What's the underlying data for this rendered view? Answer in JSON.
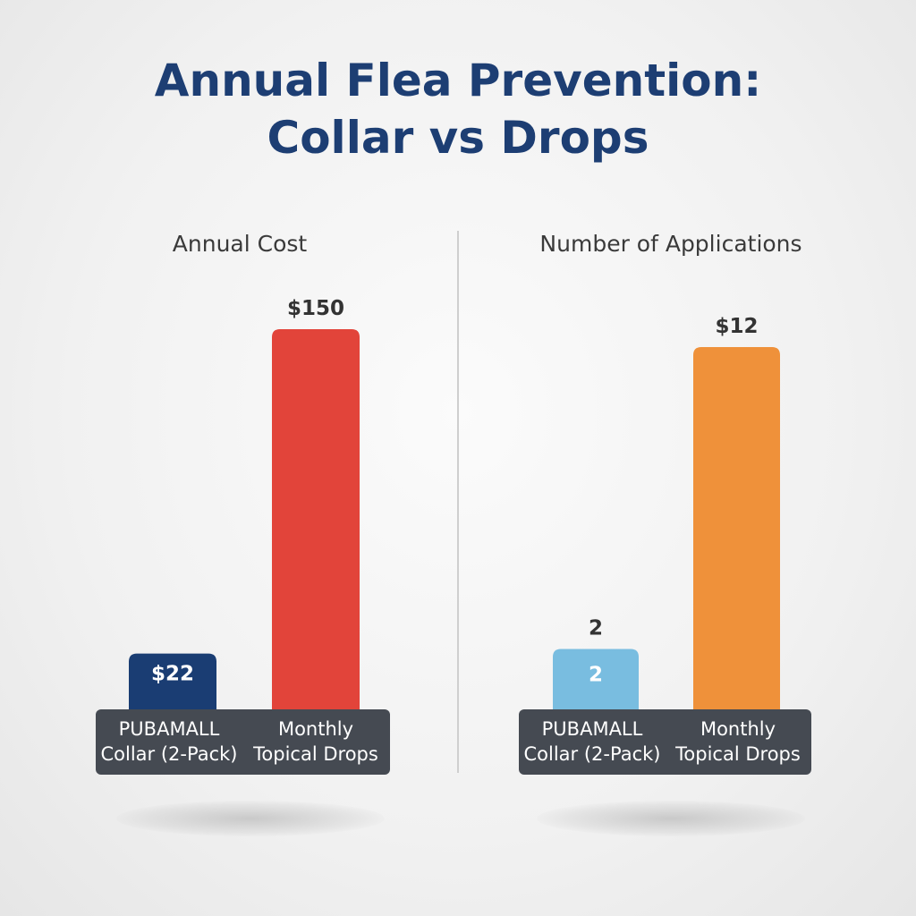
{
  "title": {
    "line1": "Annual Flea Prevention:",
    "line2": "Collar vs Drops"
  },
  "chart_data": [
    {
      "type": "bar",
      "title": "Annual Cost",
      "categories": [
        "PUBAMALL Collar (2-Pack)",
        "Monthly Topical Drops"
      ],
      "values": [
        22,
        150
      ],
      "labels": [
        "$22",
        "$150"
      ],
      "ylim": [
        0,
        150
      ],
      "colors": [
        "#1a3d73",
        "#e2443a"
      ],
      "grid": false,
      "legend": "none"
    },
    {
      "type": "bar",
      "title": "Number of Applications",
      "categories": [
        "PUBAMALL Collar (2-Pack)",
        "Monthly Topical Drops"
      ],
      "values": [
        2,
        12
      ],
      "labels": [
        "2",
        "$12"
      ],
      "inner_labels": [
        "2",
        ""
      ],
      "ylim": [
        0,
        12
      ],
      "colors": [
        "#79bde0",
        "#ef913a"
      ],
      "grid": false,
      "legend": "none"
    }
  ]
}
